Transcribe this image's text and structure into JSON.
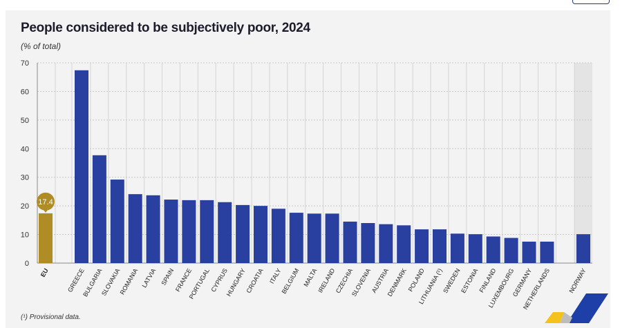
{
  "header": {
    "title": "People considered to be subjectively poor, 2024",
    "subtitle": "(% of total)"
  },
  "footnote": "(¹) Provisional data.",
  "colors": {
    "country_bar": "#2a40a0",
    "eu_bar": "#b08c24",
    "eu_label_bg": "#b08c24",
    "norway_band": "#e4e4e4",
    "background": "#f3f3f3"
  },
  "chart_data": {
    "type": "bar",
    "title": "People considered to be subjectively poor, 2024",
    "subtitle": "(% of total)",
    "xlabel": "",
    "ylabel": "% of total",
    "ylim": [
      0,
      70
    ],
    "yticks": [
      0,
      10,
      20,
      30,
      40,
      50,
      60,
      70
    ],
    "grid": true,
    "categories": [
      "EU",
      "GREECE",
      "BULGARIA",
      "SLOVAKIA",
      "ROMANIA",
      "LATVIA",
      "SPAIN",
      "FRANCE",
      "PORTUGAL",
      "CYPRUS",
      "HUNGARY",
      "CROATIA",
      "ITALY",
      "BELGIUM",
      "MALTA",
      "IRELAND",
      "CZECHIA",
      "SLOVENIA",
      "AUSTRIA",
      "DENMARK",
      "POLAND",
      "LITHUANIA (¹)",
      "SWEDEN",
      "ESTONIA",
      "FINLAND",
      "LUXEMBOURG",
      "GERMANY",
      "NETHERLANDS",
      "NORWAY"
    ],
    "values": [
      17.4,
      67.4,
      37.7,
      29.2,
      24.1,
      23.7,
      22.2,
      22.0,
      22.0,
      21.3,
      20.3,
      20.0,
      19.0,
      17.6,
      17.3,
      17.3,
      14.5,
      14.0,
      13.6,
      13.2,
      11.8,
      11.8,
      10.3,
      10.1,
      9.3,
      8.8,
      7.5,
      7.5,
      10.1
    ],
    "groups": {
      "EU": [
        "EU"
      ],
      "member_states": "GREECE..NETHERLANDS",
      "non_eu": [
        "NORWAY"
      ]
    },
    "annotations": [
      {
        "category": "EU",
        "label": "17.4"
      }
    ]
  }
}
